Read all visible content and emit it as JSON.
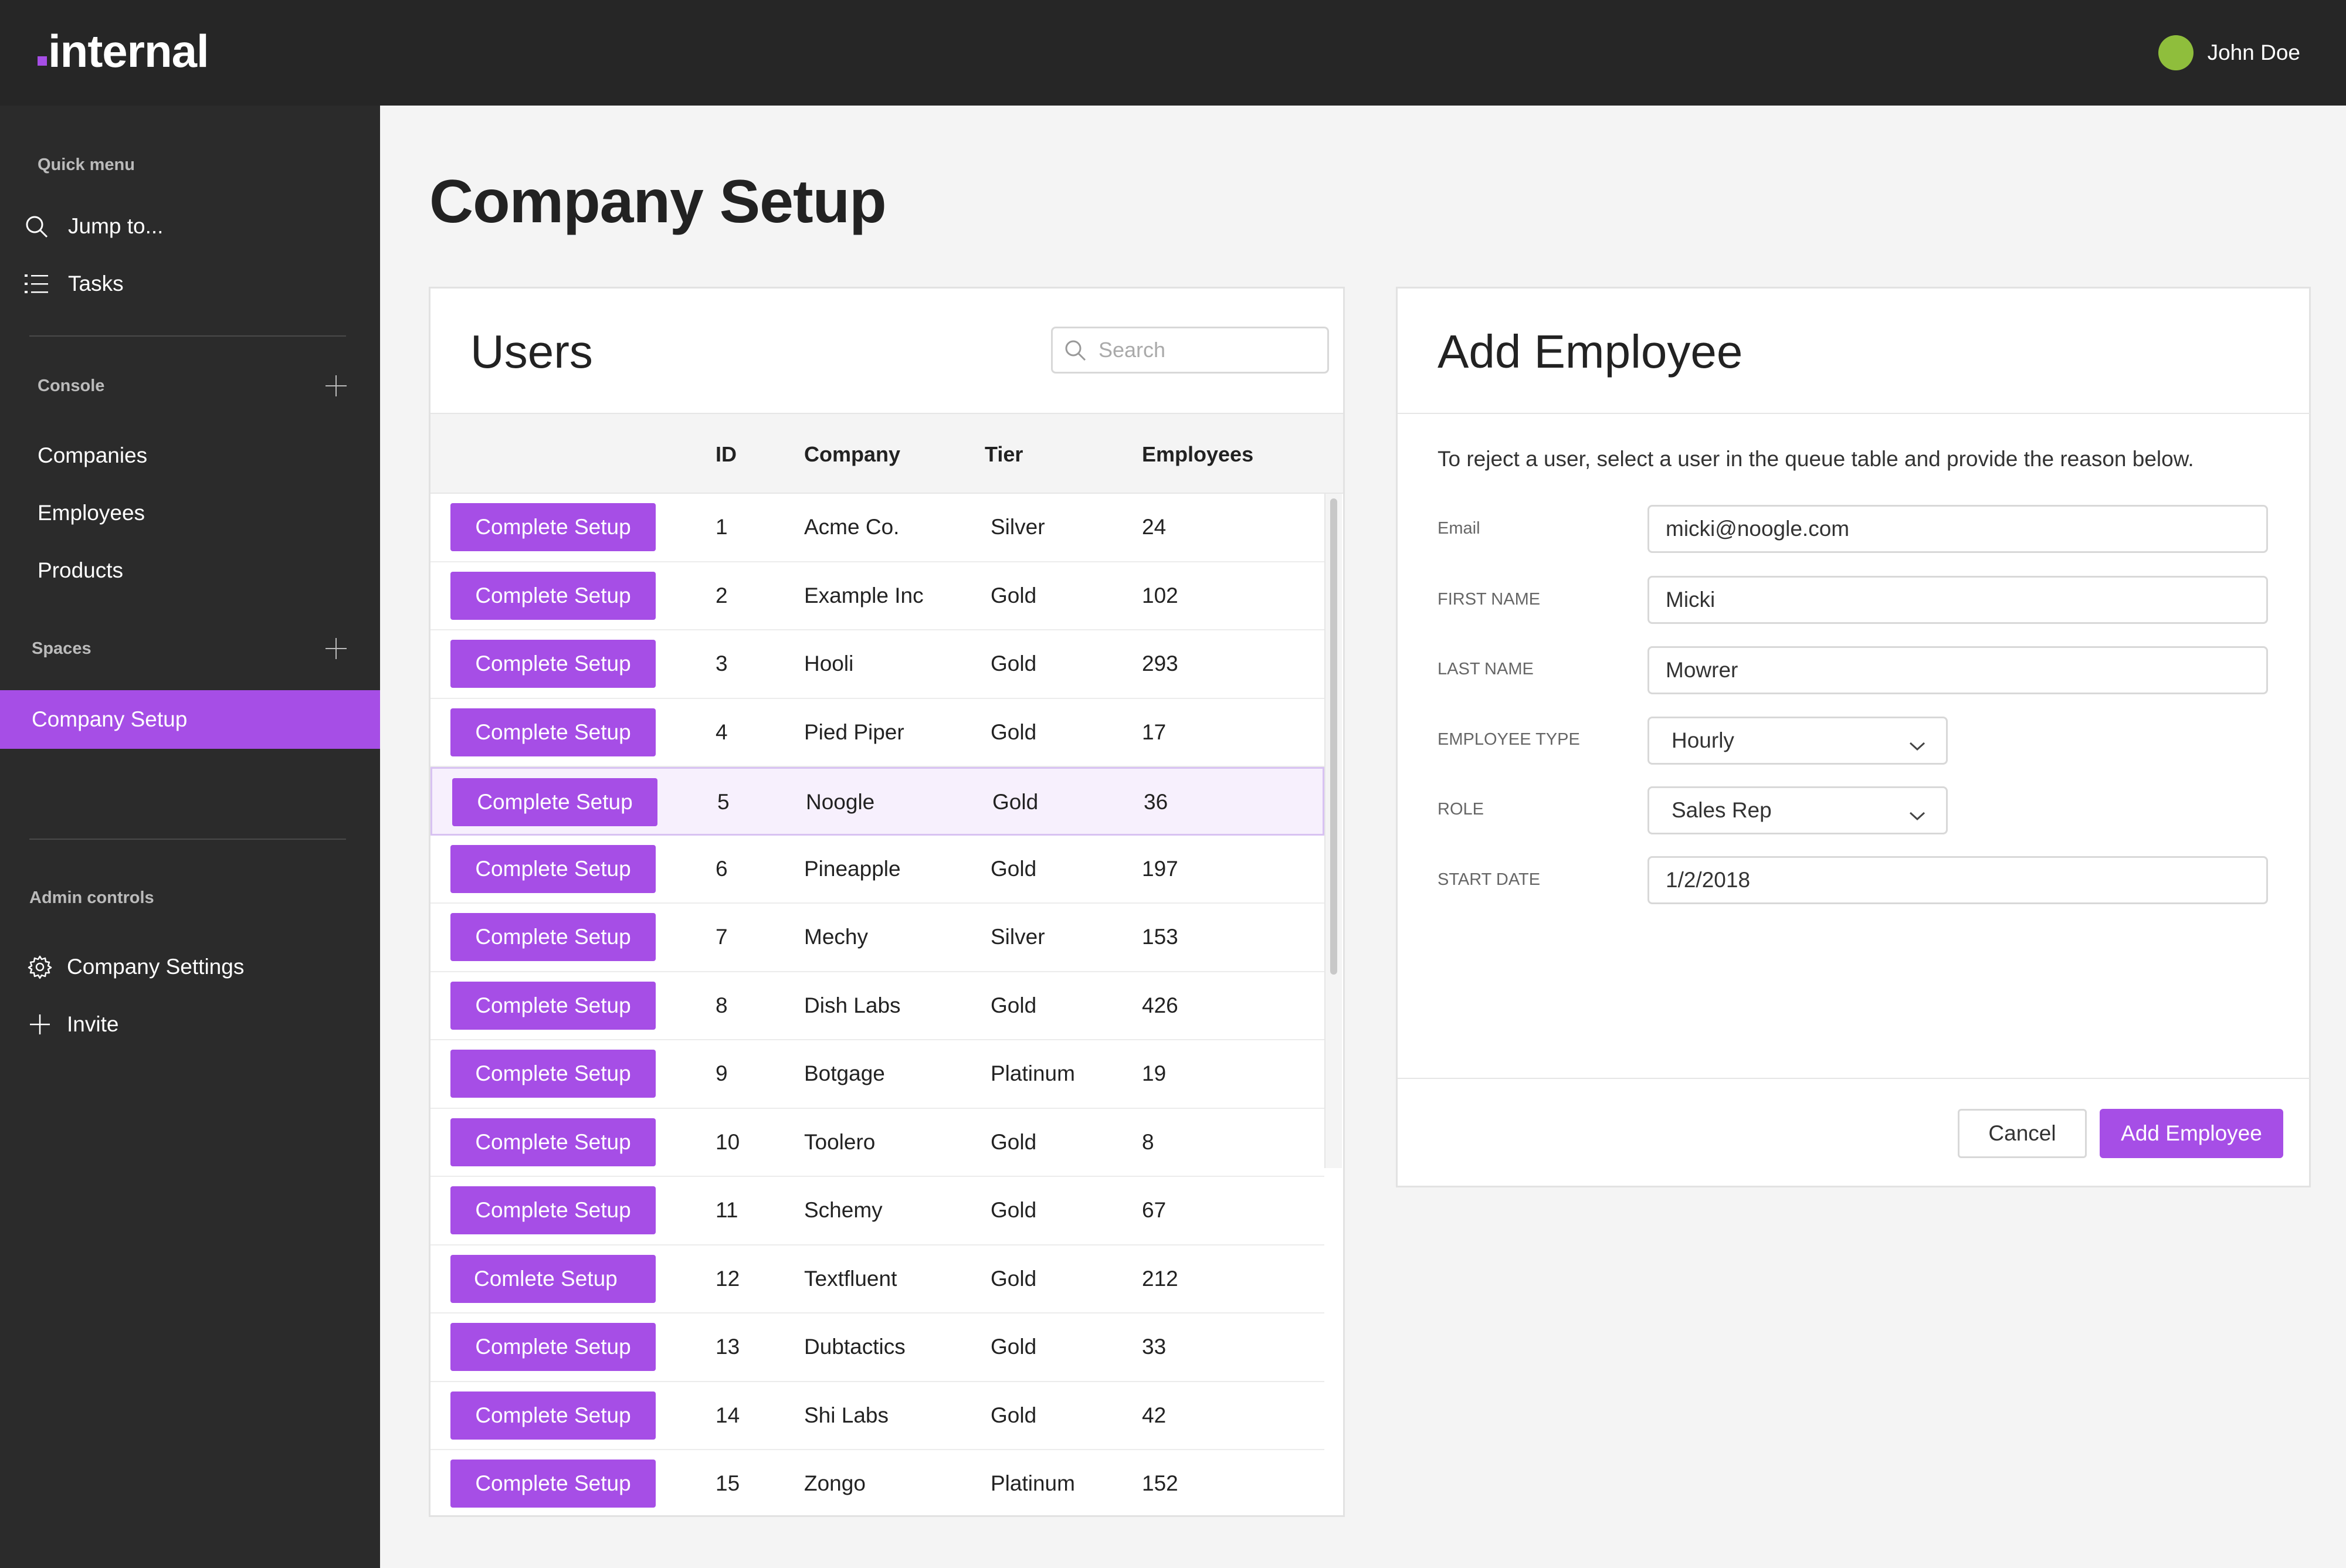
{
  "app": {
    "logo_text": "internal"
  },
  "user": {
    "name": "John Doe",
    "avatar_color": "#8fbe3c"
  },
  "sidebar": {
    "quick_menu_label": "Quick menu",
    "quick_items": [
      {
        "label": "Jump to...",
        "icon": "search-icon"
      },
      {
        "label": "Tasks",
        "icon": "list-icon"
      }
    ],
    "console_label": "Console",
    "console_items": [
      "Companies",
      "Employees",
      "Products"
    ],
    "spaces_label": "Spaces",
    "active_space": "Company Setup",
    "admin_label": "Admin controls",
    "admin_items": [
      {
        "label": "Company Settings",
        "icon": "gear-icon"
      },
      {
        "label": "Invite",
        "icon": "plus-icon"
      }
    ]
  },
  "page": {
    "title": "Company Setup"
  },
  "users": {
    "title": "Users",
    "search_placeholder": "Search",
    "columns": {
      "id": "ID",
      "company": "Company",
      "tier": "Tier",
      "employees": "Employees"
    },
    "rows": [
      {
        "action": "Complete Setup",
        "id": "1",
        "company": "Acme Co.",
        "tier": "Silver",
        "employees": "24"
      },
      {
        "action": "Complete Setup",
        "id": "2",
        "company": "Example Inc",
        "tier": "Gold",
        "employees": "102"
      },
      {
        "action": "Complete Setup",
        "id": "3",
        "company": "Hooli",
        "tier": "Gold",
        "employees": "293"
      },
      {
        "action": "Complete Setup",
        "id": "4",
        "company": "Pied Piper",
        "tier": "Gold",
        "employees": "17"
      },
      {
        "action": "Complete Setup",
        "id": "5",
        "company": "Noogle",
        "tier": "Gold",
        "employees": "36"
      },
      {
        "action": "Complete Setup",
        "id": "6",
        "company": "Pineapple",
        "tier": "Gold",
        "employees": "197"
      },
      {
        "action": "Complete Setup",
        "id": "7",
        "company": "Mechy",
        "tier": "Silver",
        "employees": "153"
      },
      {
        "action": "Complete Setup",
        "id": "8",
        "company": "Dish Labs",
        "tier": "Gold",
        "employees": "426"
      },
      {
        "action": "Complete Setup",
        "id": "9",
        "company": "Botgage",
        "tier": "Platinum",
        "employees": "19"
      },
      {
        "action": "Complete Setup",
        "id": "10",
        "company": "Toolero",
        "tier": "Gold",
        "employees": "8"
      },
      {
        "action": "Complete Setup",
        "id": "11",
        "company": "Schemy",
        "tier": "Gold",
        "employees": "67"
      },
      {
        "action": "Comlete Setup",
        "id": "12",
        "company": "Textfluent",
        "tier": "Gold",
        "employees": "212"
      },
      {
        "action": "Complete Setup",
        "id": "13",
        "company": "Dubtactics",
        "tier": "Gold",
        "employees": "33"
      },
      {
        "action": "Complete Setup",
        "id": "14",
        "company": "Shi Labs",
        "tier": "Gold",
        "employees": "42"
      },
      {
        "action": "Complete Setup",
        "id": "15",
        "company": "Zongo",
        "tier": "Platinum",
        "employees": "152"
      }
    ],
    "selected_row_id": "5"
  },
  "add_employee": {
    "title": "Add Employee",
    "description": "To reject a user, select a user in the queue table and provide the reason below.",
    "fields": {
      "email": {
        "label": "Email",
        "value": "micki@noogle.com"
      },
      "first_name": {
        "label": "FIRST NAME",
        "value": "Micki"
      },
      "last_name": {
        "label": "LAST NAME",
        "value": "Mowrer"
      },
      "employee_type": {
        "label": "EMPLOYEE TYPE",
        "value": "Hourly"
      },
      "role": {
        "label": "ROLE",
        "value": "Sales Rep"
      },
      "start_date": {
        "label": "START DATE",
        "value": "1/2/2018"
      }
    },
    "cancel_label": "Cancel",
    "submit_label": "Add Employee"
  },
  "colors": {
    "accent": "#a64ee6",
    "topbar": "#262626",
    "sidebar": "#2b2b2b"
  }
}
